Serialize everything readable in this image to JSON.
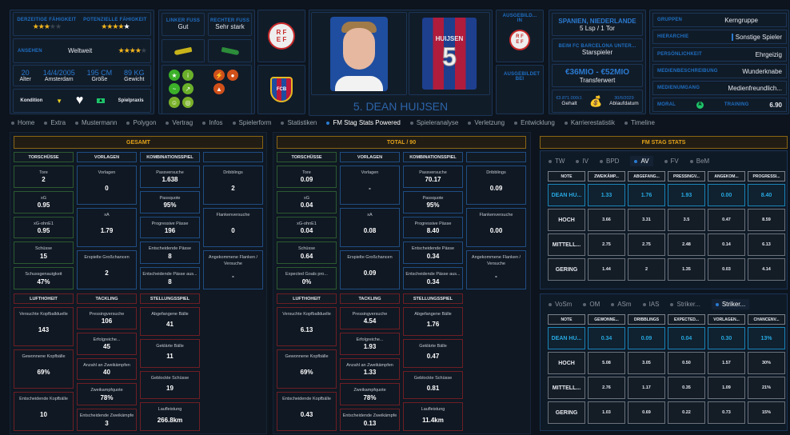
{
  "profile": {
    "current_ability_label": "Derzeitige Fähigkeit",
    "current_ability_stars": 3,
    "potential_ability_label": "Potenzielle Fähigkeit",
    "potential_ability_stars": 4.5,
    "reputation_label": "Ansehen",
    "reputation_value": "Weltweit",
    "reputation_stars": 4,
    "age": "20",
    "age_label": "Alter",
    "birth": "14/4/2005",
    "birth_label": "Amsterdam",
    "height": "195 CM",
    "height_label": "Größe",
    "weight": "89 KG",
    "weight_label": "Gewicht",
    "condition_label": "Kondition",
    "match_practice_label": "Spielpraxis",
    "left_foot_label": "Linker Fuß",
    "left_foot": "Gut",
    "right_foot_label": "Rechter Fuß",
    "right_foot": "Sehr stark",
    "name": "5. DEAN HUIJSEN",
    "shirt_name": "HUIJSEN",
    "shirt_number": "5",
    "federation_logo": "RFEF",
    "club_logo": "FCB",
    "trained_in_label": "Ausgebild... in",
    "trained_at_label": "Ausgebildet bei",
    "nations": "SPANIEN, NIEDERLANDE",
    "caps": "5 Lsp / 1 Tor",
    "club_status_label": "Beim FC Barcelona unter...",
    "club_status": "Starspieler",
    "transfer_value": "€36MIO - €52MIO",
    "transfer_value_label": "Transferwert",
    "salary": "€3.871.000/J.",
    "salary_label": "Gehalt",
    "expiry": "30/6/2029",
    "expiry_label": "Ablaufdatum",
    "groups_label": "Gruppen",
    "groups": "Kerngruppe",
    "hierarchy_label": "Hierarchie",
    "hierarchy": "Sonstige Spieler",
    "personality_label": "Persönlichkeit",
    "personality": "Ehrgeizig",
    "media_desc_label": "Medienbeschreibung",
    "media_desc": "Wunderknabe",
    "media_handling_label": "Medienumgang",
    "media_handling": "Medienfreundlich...",
    "morale_label": "Moral",
    "morale": "A",
    "training_label": "Training",
    "training": "6.90"
  },
  "tabs": [
    "Home",
    "Extra",
    "Mustermann",
    "Polygon",
    "Vertrag",
    "Infos",
    "Spielerform",
    "Statistiken",
    "FM Stag Stats Powered",
    "Spieleranalyse",
    "Verletzung",
    "Entwicklung",
    "Karrierestatistik",
    "Timeline"
  ],
  "active_tab": 8,
  "panels": [
    {
      "title": "GESAMT",
      "top": [
        {
          "h": "TORSCHÜSSE",
          "c": "g",
          "cells": [
            [
              "Tore",
              "2"
            ],
            [
              "xG",
              "0.95"
            ],
            [
              "xG-ohnE1",
              "0.95"
            ],
            [
              "Schüsse",
              "15"
            ],
            [
              "Schussgenauigkeit",
              "47%"
            ]
          ]
        },
        {
          "h": "VORLAGEN",
          "c": "b",
          "cells": [
            [
              "Vorlagen",
              "0"
            ],
            [
              "xA",
              "1.79"
            ],
            [
              "Erspielte Großchancen",
              "2"
            ]
          ]
        },
        {
          "h": "KOMBINATIONSSPIEL",
          "c": "b",
          "cells": [
            [
              "Passversuche",
              "1.638"
            ],
            [
              "Passquote",
              "95%"
            ],
            [
              "Progressive Pässe",
              "196"
            ],
            [
              "Entscheidende Pässe",
              "8"
            ],
            [
              "Entscheidende Pässe aus...",
              "8"
            ]
          ]
        },
        {
          "h": "",
          "c": "b",
          "cells": [
            [
              "Dribblings",
              "2"
            ],
            [
              "Flankenversuche",
              "0"
            ],
            [
              "Angekommene Flanken / Versuche",
              "-"
            ]
          ]
        }
      ],
      "bottom": [
        {
          "h": "LUFTHOHEIT",
          "c": "r",
          "cells": [
            [
              "Versuchte Kopfballduelle",
              "143"
            ],
            [
              "Gewonnene Kopfbälle",
              "69%"
            ],
            [
              "Entscheidende Kopfbälle",
              "10"
            ]
          ]
        },
        {
          "h": "TACKLING",
          "c": "r",
          "cells": [
            [
              "Pressingversuche",
              "106"
            ],
            [
              "Erfolgreiche...",
              "45"
            ],
            [
              "Anzahl an Zweikämpfen",
              "40"
            ],
            [
              "Zweikampfquote",
              "78%"
            ],
            [
              "Entscheidende Zweikämpfe",
              "3"
            ]
          ]
        },
        {
          "h": "STELLUNGSSPIEL",
          "c": "r",
          "cells": [
            [
              "Abgefangene Bälle",
              "41"
            ],
            [
              "Geklärte Bälle",
              "11"
            ],
            [
              "Geblockte Schüsse",
              "19"
            ],
            [
              "Laufleistung",
              "266.8km"
            ]
          ]
        }
      ]
    },
    {
      "title": "TOTAL / 90",
      "top": [
        {
          "h": "TORSCHÜSSE",
          "c": "g",
          "cells": [
            [
              "Tore",
              "0.09"
            ],
            [
              "xG",
              "0.04"
            ],
            [
              "xG-ohnE1",
              "0.04"
            ],
            [
              "Schüsse",
              "0.64"
            ],
            [
              "Expected Goals pro...",
              "0%"
            ]
          ]
        },
        {
          "h": "VORLAGEN",
          "c": "b",
          "cells": [
            [
              "Vorlagen",
              "-"
            ],
            [
              "xA",
              "0.08"
            ],
            [
              "Erspielte Großchancen",
              "0.09"
            ]
          ]
        },
        {
          "h": "KOMBINATIONSSPIEL",
          "c": "b",
          "cells": [
            [
              "Passversuche",
              "70.17"
            ],
            [
              "Passquote",
              "95%"
            ],
            [
              "Progressive Pässe",
              "8.40"
            ],
            [
              "Entscheidende Pässe",
              "0.34"
            ],
            [
              "Entscheidende Pässe aus...",
              "0.34"
            ]
          ]
        },
        {
          "h": "",
          "c": "b",
          "cells": [
            [
              "Dribblings",
              "0.09"
            ],
            [
              "Flankenversuche",
              "0.00"
            ],
            [
              "Angekommene Flanken / Versuche",
              "-"
            ]
          ]
        }
      ],
      "bottom": [
        {
          "h": "LUFTHOHEIT",
          "c": "r",
          "cells": [
            [
              "Versuchte Kopfballduelle",
              "6.13"
            ],
            [
              "Gewonnene Kopfbälle",
              "69%"
            ],
            [
              "Entscheidende Kopfbälle",
              "0.43"
            ]
          ]
        },
        {
          "h": "TACKLING",
          "c": "r",
          "cells": [
            [
              "Pressingversuche",
              "4.54"
            ],
            [
              "Erfolgreiche...",
              "1.93"
            ],
            [
              "Anzahl an Zweikämpfen",
              "1.33"
            ],
            [
              "Zweikampfquote",
              "78%"
            ],
            [
              "Entscheidende Zweikämpfe",
              "0.13"
            ]
          ]
        },
        {
          "h": "STELLUNGSSPIEL",
          "c": "r",
          "cells": [
            [
              "Abgefangene Bälle",
              "1.76"
            ],
            [
              "Geklärte Bälle",
              "0.47"
            ],
            [
              "Geblockte Schüsse",
              "0.81"
            ],
            [
              "Laufleistung",
              "11.4km"
            ]
          ]
        }
      ]
    }
  ],
  "stag": {
    "title": "FM STAG STATS",
    "tables": [
      {
        "tabs": [
          "TW",
          "IV",
          "BPD",
          "AV",
          "FV",
          "BeM"
        ],
        "active": 3,
        "headers": [
          "NOTE",
          "ZWEIKÄMP...",
          "ABGEFANG...",
          "PRESSINGV...",
          "ANGEKOM...",
          "PROGRESSI..."
        ],
        "rows": [
          [
            "DEAN HU...",
            "1.33",
            "1.76",
            "1.93",
            "0.00",
            "8.40"
          ],
          [
            "HOCH",
            "3.66",
            "3.31",
            "3.5",
            "0.47",
            "8.59"
          ],
          [
            "MITTELL...",
            "2.75",
            "2.75",
            "2.48",
            "0.14",
            "6.13"
          ],
          [
            "GERING",
            "1.44",
            "2",
            "1.35",
            "0.03",
            "4.14"
          ]
        ]
      },
      {
        "tabs": [
          "VoSm",
          "OM",
          "ASm",
          "IAS",
          "Striker...",
          "Striker..."
        ],
        "active": 5,
        "headers": [
          "NOTE",
          "GEWONNE...",
          "DRIBBLINGS",
          "EXPECTED...",
          "VORLAGEN...",
          "CHANCENV..."
        ],
        "rows": [
          [
            "DEAN HU...",
            "0.34",
            "0.09",
            "0.04",
            "0.30",
            "13%"
          ],
          [
            "HOCH",
            "5.08",
            "3.05",
            "0.50",
            "1.57",
            "30%"
          ],
          [
            "MITTELL...",
            "2.76",
            "1.17",
            "0.35",
            "1.09",
            "21%"
          ],
          [
            "GERING",
            "1.03",
            "0.69",
            "0.22",
            "0.73",
            "15%"
          ]
        ]
      }
    ]
  },
  "colors": {
    "accent": "#2a7ad0",
    "gold": "#e3a21a",
    "green": "#2c5a30",
    "red": "#6e1e24",
    "highlight": "#27a8e0"
  }
}
